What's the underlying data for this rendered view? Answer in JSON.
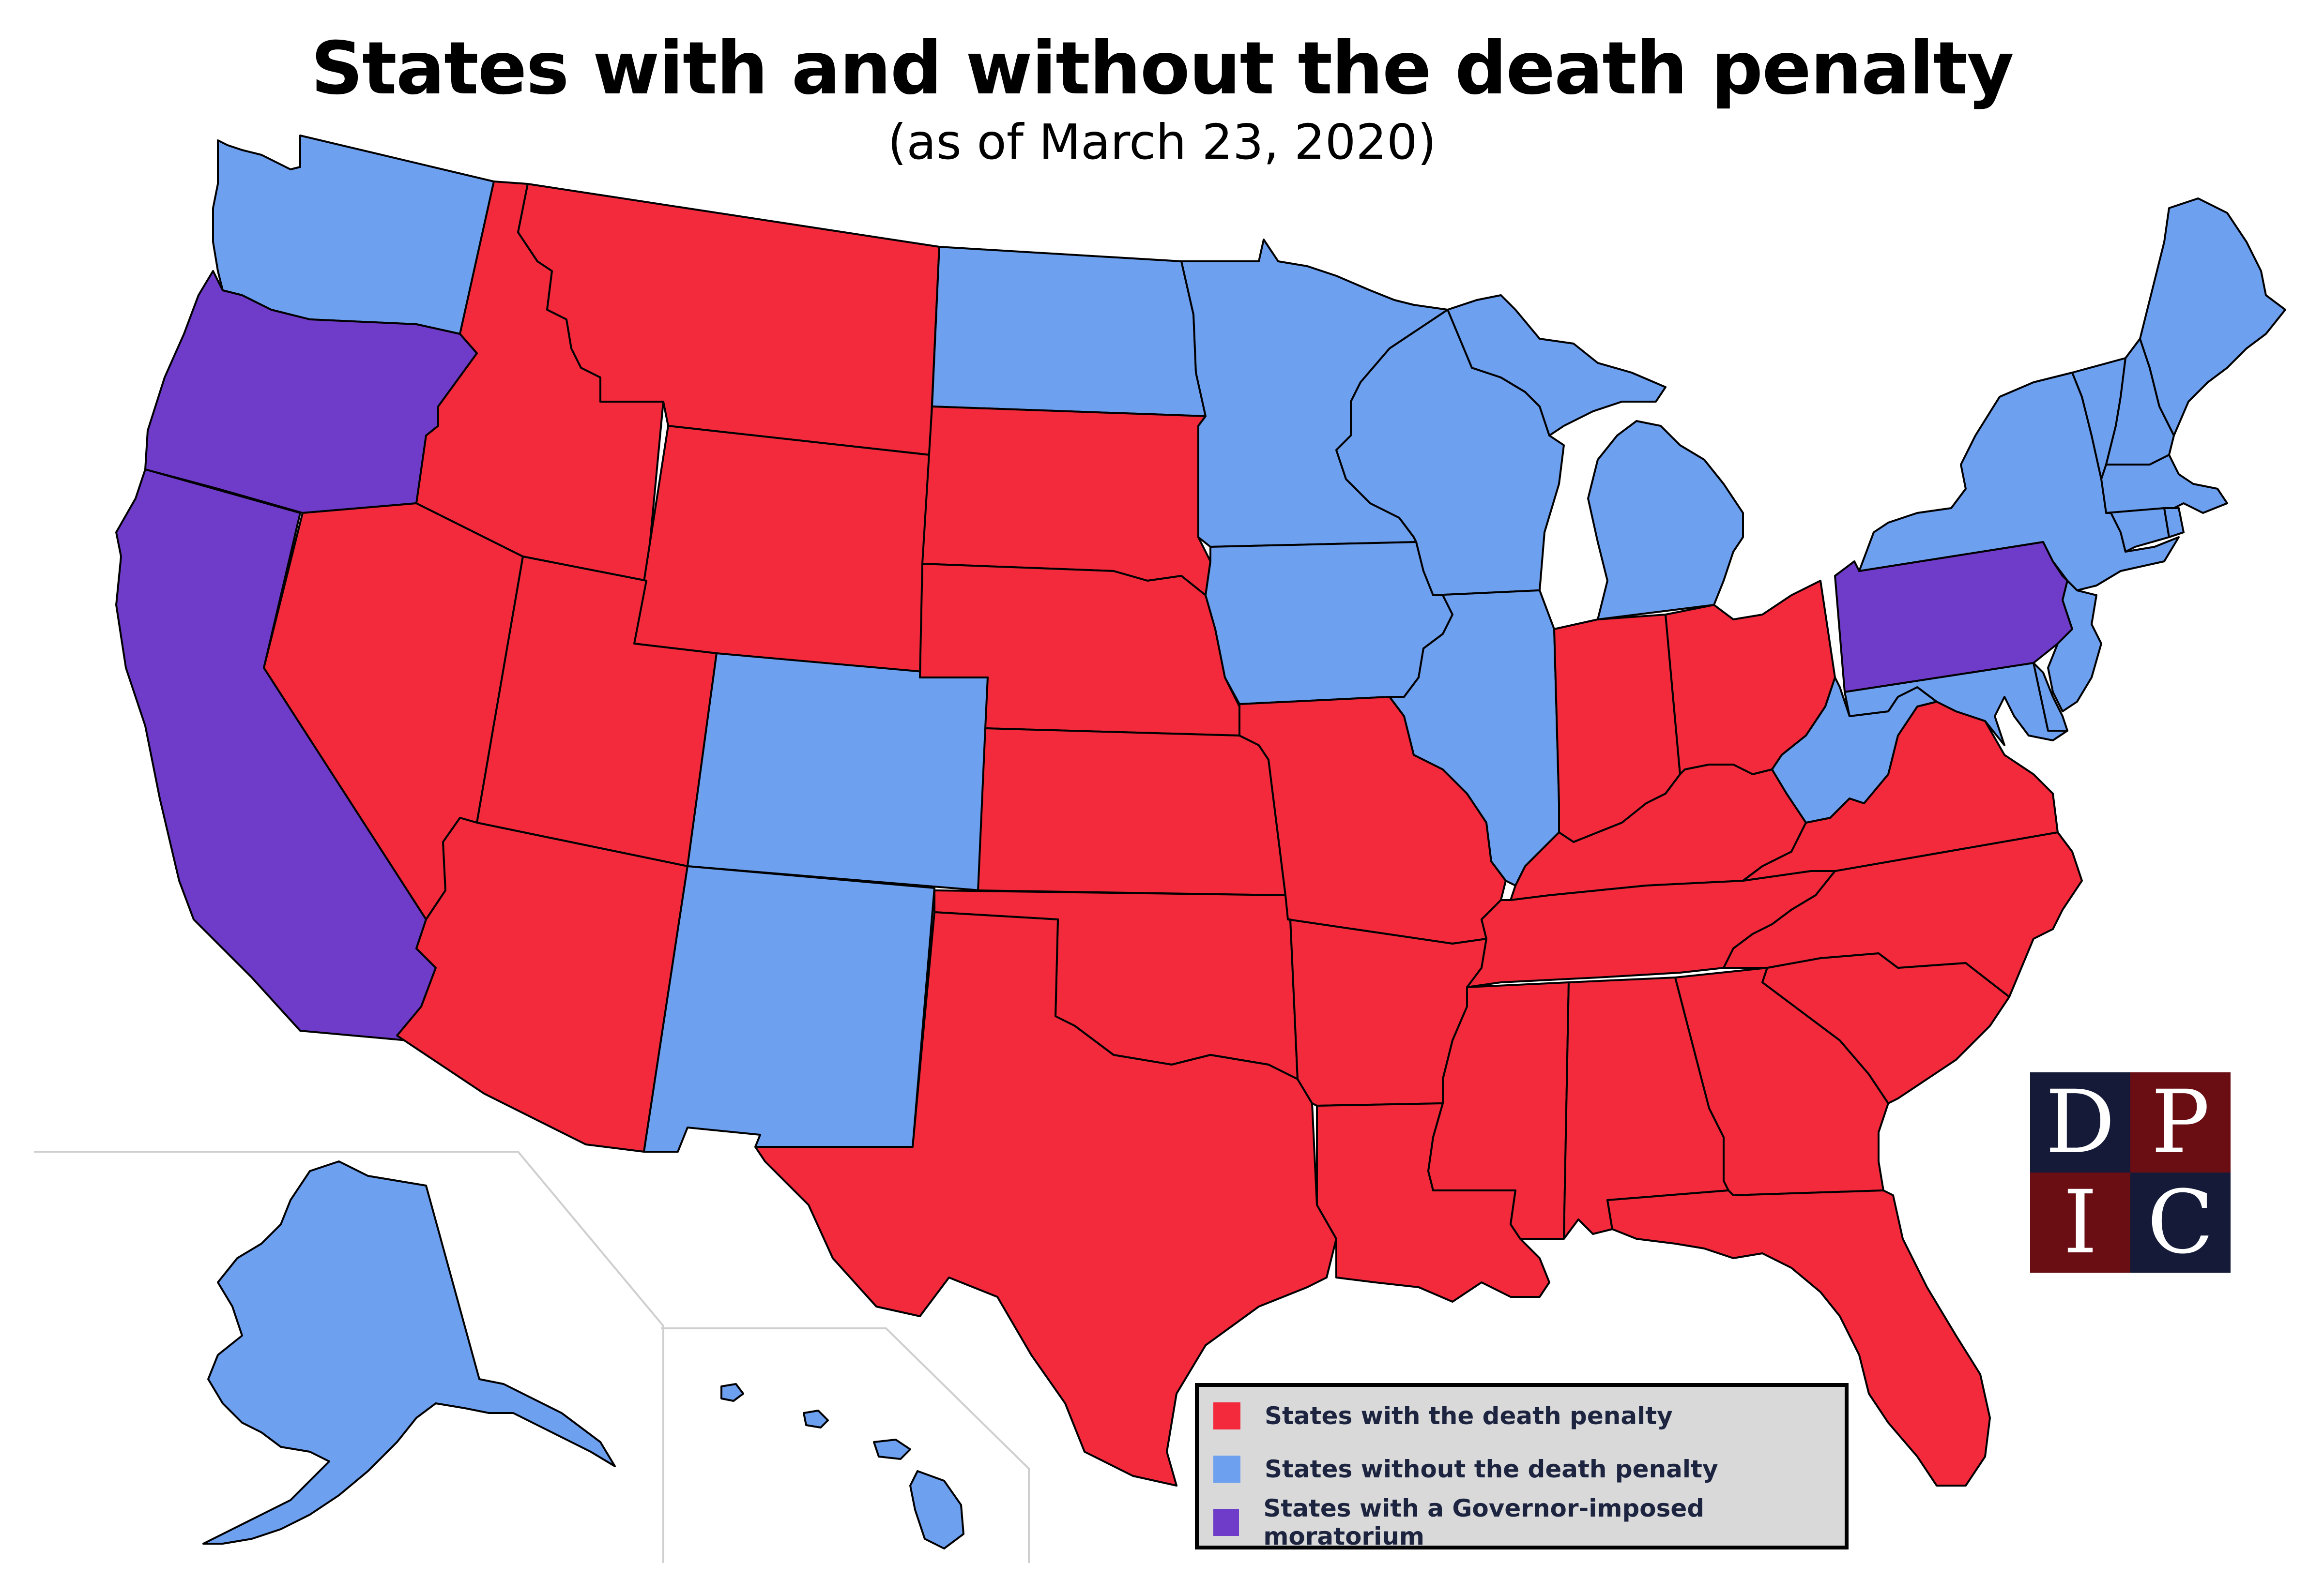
{
  "title": "States with and without the death penalty",
  "subtitle": "(as of March 23, 2020)",
  "colors": {
    "with_death_penalty": "#f22a3c",
    "without_death_penalty": "#6ea0f0",
    "moratorium": "#6e3cc8",
    "logo_dark": "#141a38",
    "logo_red": "#6a0e14",
    "inset_lines": "#cfcfcf"
  },
  "legend": {
    "items": [
      {
        "label": "States with the death penalty",
        "status": "with_death_penalty"
      },
      {
        "label": "States without the death penalty",
        "status": "without_death_penalty"
      },
      {
        "label": "States with a Governor-imposed moratorium",
        "status": "moratorium"
      }
    ]
  },
  "logo": {
    "letters": [
      "D",
      "P",
      "I",
      "C"
    ]
  },
  "states": {
    "Washington": "without_death_penalty",
    "Oregon": "moratorium",
    "California": "moratorium",
    "Nevada": "with_death_penalty",
    "Idaho": "with_death_penalty",
    "Montana": "with_death_penalty",
    "Wyoming": "with_death_penalty",
    "Utah": "with_death_penalty",
    "Arizona": "with_death_penalty",
    "Colorado": "without_death_penalty",
    "New Mexico": "without_death_penalty",
    "North Dakota": "without_death_penalty",
    "South Dakota": "with_death_penalty",
    "Nebraska": "with_death_penalty",
    "Kansas": "with_death_penalty",
    "Oklahoma": "with_death_penalty",
    "Texas": "with_death_penalty",
    "Minnesota": "without_death_penalty",
    "Iowa": "without_death_penalty",
    "Missouri": "with_death_penalty",
    "Arkansas": "with_death_penalty",
    "Louisiana": "with_death_penalty",
    "Wisconsin": "without_death_penalty",
    "Illinois": "without_death_penalty",
    "Michigan": "without_death_penalty",
    "Indiana": "with_death_penalty",
    "Ohio": "with_death_penalty",
    "Kentucky": "with_death_penalty",
    "Tennessee": "with_death_penalty",
    "Mississippi": "with_death_penalty",
    "Alabama": "with_death_penalty",
    "Georgia": "with_death_penalty",
    "Florida": "with_death_penalty",
    "South Carolina": "with_death_penalty",
    "North Carolina": "with_death_penalty",
    "Virginia": "with_death_penalty",
    "West Virginia": "without_death_penalty",
    "Pennsylvania": "moratorium",
    "New York": "without_death_penalty",
    "Vermont": "without_death_penalty",
    "New Hampshire": "without_death_penalty",
    "Maine": "without_death_penalty",
    "Massachusetts": "without_death_penalty",
    "Connecticut": "without_death_penalty",
    "Rhode Island": "without_death_penalty",
    "New Jersey": "without_death_penalty",
    "Delaware": "without_death_penalty",
    "Maryland": "without_death_penalty",
    "Alaska": "without_death_penalty",
    "Hawaii": "without_death_penalty"
  }
}
